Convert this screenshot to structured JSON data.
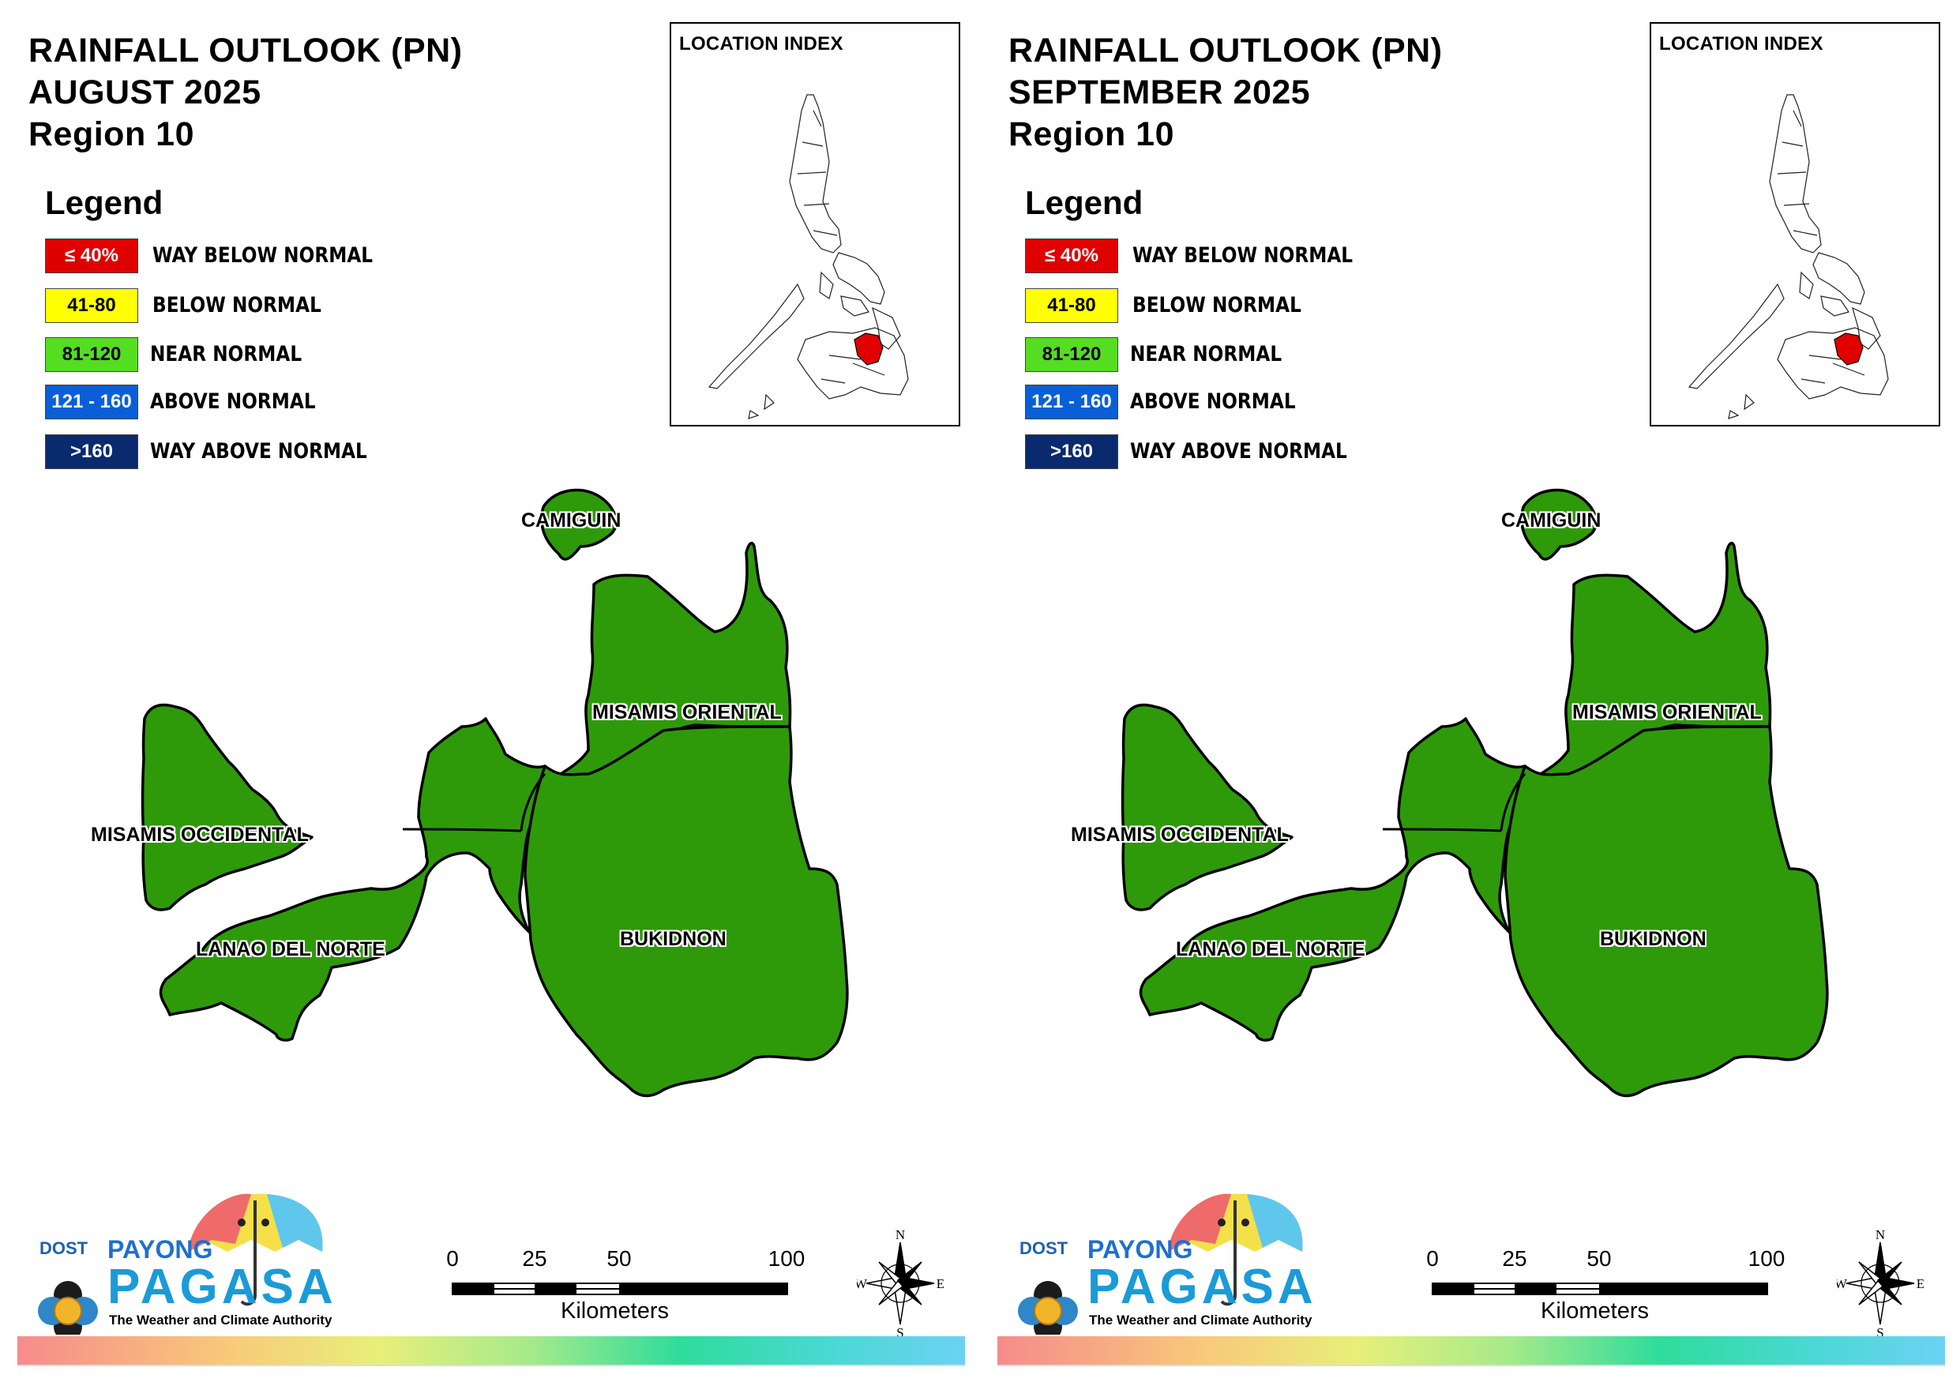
{
  "panels": [
    {
      "title_line1": "RAINFALL OUTLOOK (PN)",
      "title_line2": "AUGUST 2025",
      "title_line3": "Region 10"
    },
    {
      "title_line1": "RAINFALL OUTLOOK (PN)",
      "title_line2": "SEPTEMBER 2025",
      "title_line3": "Region 10"
    }
  ],
  "legend": {
    "title": "Legend",
    "items": [
      {
        "range": "≤ 40%",
        "label": "WAY BELOW NORMAL",
        "color": "#e00000",
        "text_color": "#ffffff"
      },
      {
        "range": "41-80",
        "label": "BELOW NORMAL",
        "color": "#ffff00",
        "text_color": "#000000"
      },
      {
        "range": "81-120",
        "label": "NEAR NORMAL",
        "color": "#55dd22",
        "text_color": "#000000"
      },
      {
        "range": "121 - 160",
        "label": "ABOVE NORMAL",
        "color": "#0a5fd6",
        "text_color": "#ffffff"
      },
      {
        "range": ">160",
        "label": "WAY ABOVE NORMAL",
        "color": "#0a2a6e",
        "text_color": "#ffffff"
      }
    ]
  },
  "inset": {
    "title": "LOCATION INDEX",
    "highlight_color": "#e00000"
  },
  "map": {
    "fill_color": "#2e9a0a",
    "provinces": {
      "camiguin": "CAMIGUIN",
      "misamis_oriental": "MISAMIS ORIENTAL",
      "misamis_occidental": "MISAMIS OCCIDENTAL",
      "lanao_del_norte": "LANAO DEL NORTE",
      "bukidnon": "BUKIDNON"
    },
    "forecast_category": "NEAR NORMAL"
  },
  "scale": {
    "ticks": [
      "0",
      "25",
      "50",
      "100"
    ],
    "unit": "Kilometers"
  },
  "compass": {
    "n": "N",
    "s": "S",
    "e": "E",
    "w": "W"
  },
  "logo": {
    "dost": "DOST",
    "payong": "PAYONG",
    "pagasa": "PAGASA",
    "tagline": "The Weather and Climate Authority"
  }
}
